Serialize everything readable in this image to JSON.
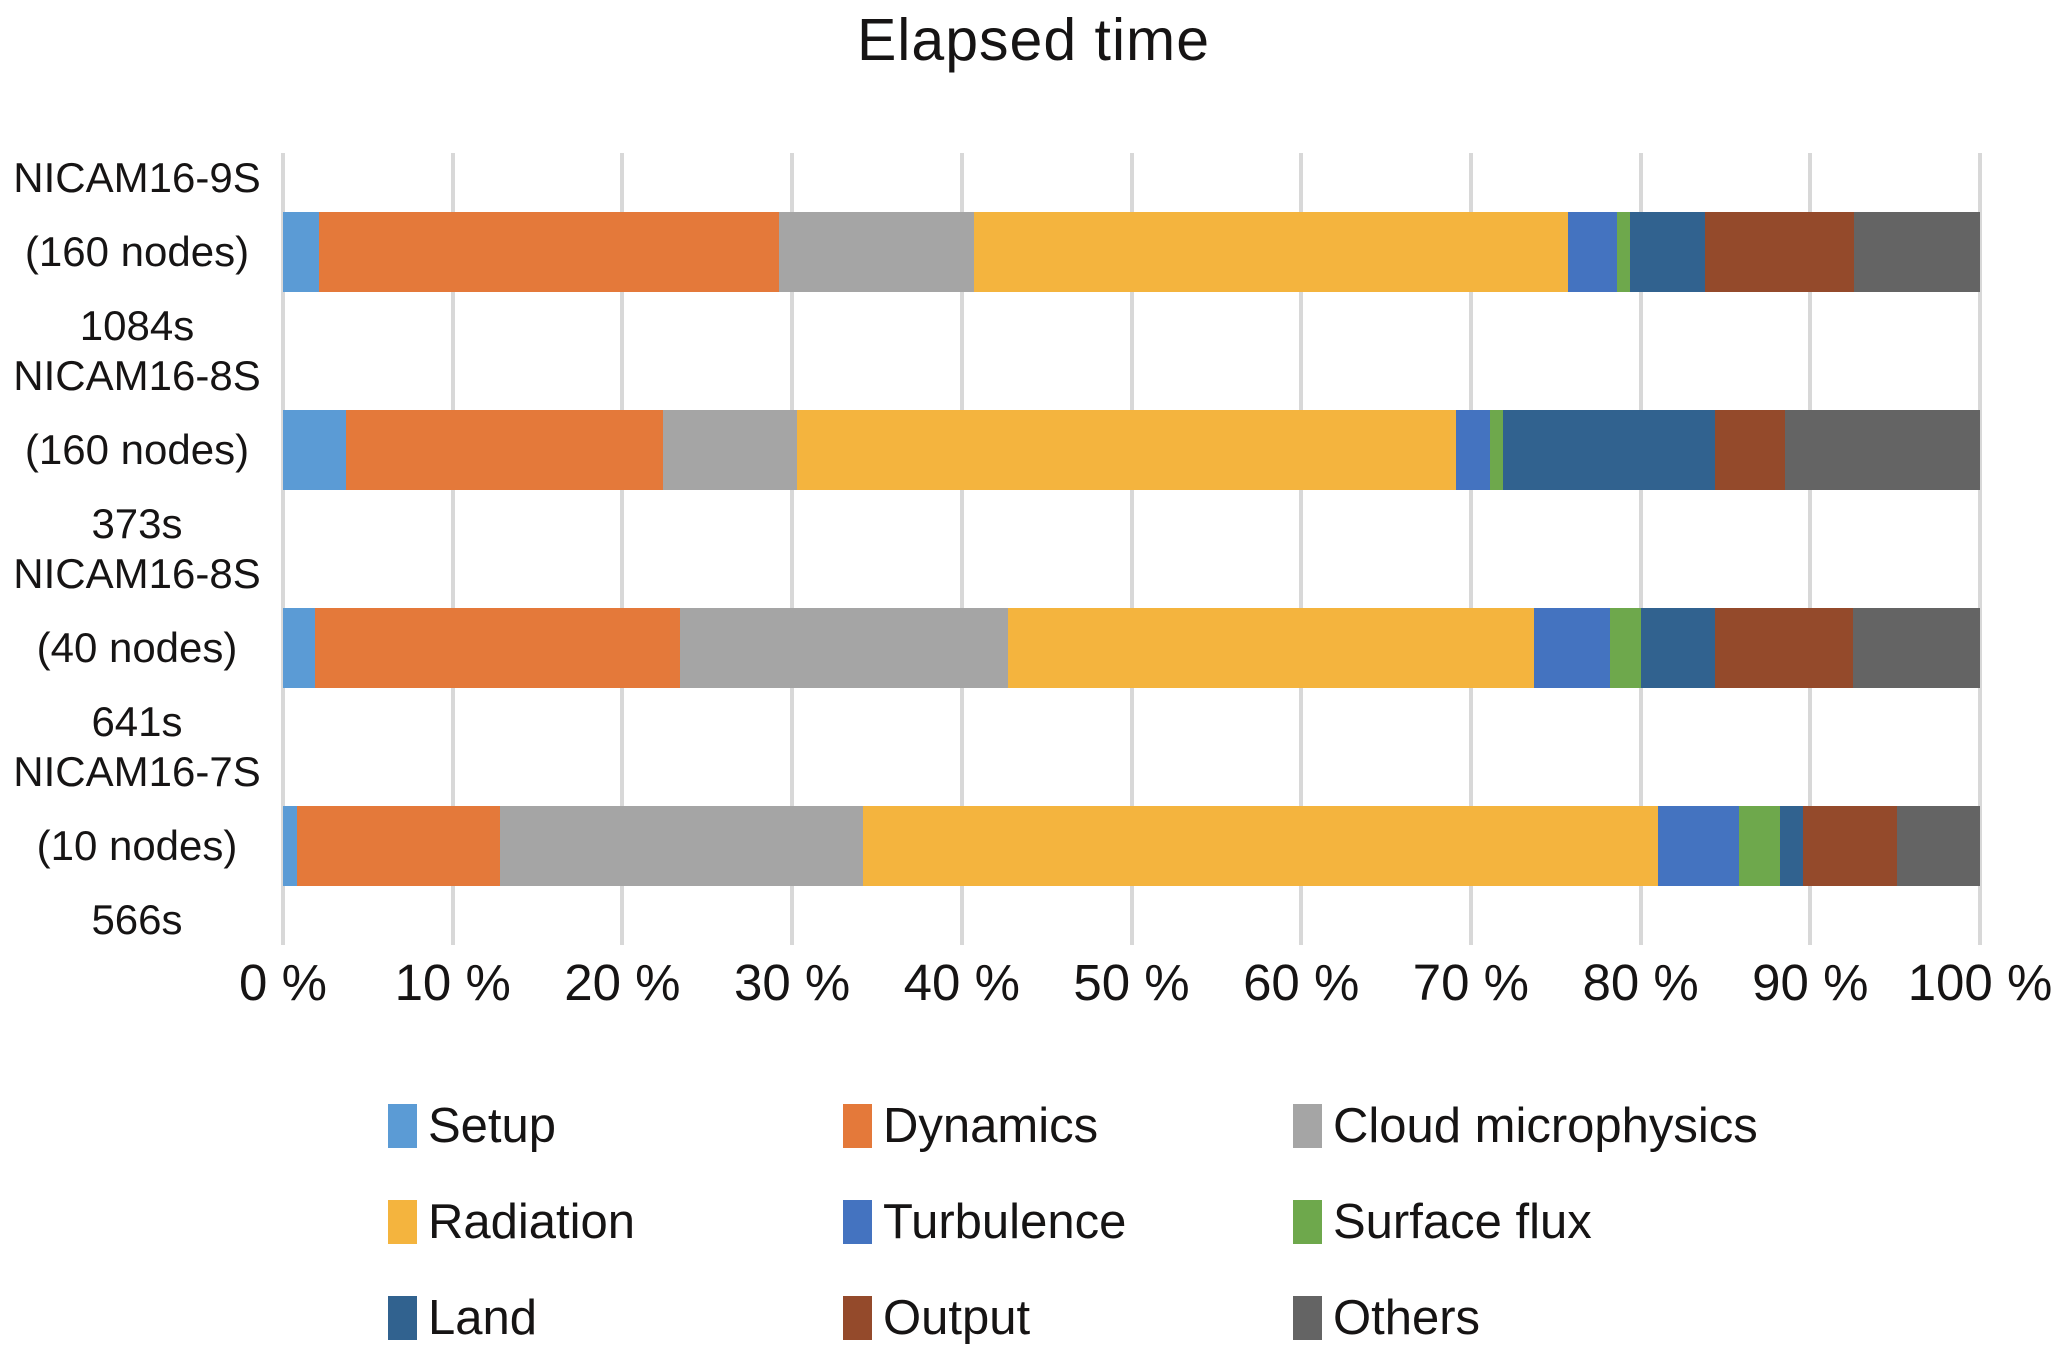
{
  "title": "Elapsed time",
  "chart_data": {
    "type": "bar",
    "orientation": "horizontal",
    "stacked": true,
    "title": "Elapsed time",
    "xlabel": "",
    "ylabel": "",
    "xlim": [
      0,
      100
    ],
    "grid": true,
    "legend_position": "bottom",
    "x_ticks": [
      "0 %",
      "10 %",
      "20 %",
      "30 %",
      "40 %",
      "50 %",
      "60 %",
      "70 %",
      "80 %",
      "90 %",
      "100 %"
    ],
    "categories": [
      {
        "lines": [
          "NICAM16-9S",
          "(160 nodes)",
          "1084s"
        ]
      },
      {
        "lines": [
          "NICAM16-8S",
          "(160 nodes)",
          "373s"
        ]
      },
      {
        "lines": [
          "NICAM16-8S",
          "(40 nodes)",
          "641s"
        ]
      },
      {
        "lines": [
          "NICAM16-7S",
          "(10 nodes)",
          "566s"
        ]
      }
    ],
    "series": [
      {
        "name": "Setup",
        "color": "#5B9BD5",
        "values": [
          2.1,
          3.7,
          1.9,
          0.8
        ]
      },
      {
        "name": "Dynamics",
        "color": "#E4793A",
        "values": [
          27.1,
          18.7,
          21.5,
          12.0
        ]
      },
      {
        "name": "Cloud microphysics",
        "color": "#A5A5A5",
        "values": [
          11.5,
          7.9,
          19.3,
          21.4
        ]
      },
      {
        "name": "Radiation",
        "color": "#F4B43E",
        "values": [
          35.0,
          38.8,
          31.0,
          46.8
        ]
      },
      {
        "name": "Turbulence",
        "color": "#4473C0",
        "values": [
          2.9,
          2.0,
          4.5,
          4.8
        ]
      },
      {
        "name": "Surface flux",
        "color": "#6EA84C",
        "values": [
          0.8,
          0.8,
          1.8,
          2.4
        ]
      },
      {
        "name": "Land",
        "color": "#31628F",
        "values": [
          4.4,
          12.5,
          4.4,
          1.4
        ]
      },
      {
        "name": "Output",
        "color": "#944A2B",
        "values": [
          8.8,
          4.1,
          8.1,
          5.5
        ]
      },
      {
        "name": "Others",
        "color": "#646464",
        "values": [
          7.4,
          11.5,
          7.5,
          4.9
        ]
      }
    ],
    "colors": {
      "gridline": "#d8d8d8",
      "text": "#161414",
      "background": "#ffffff"
    }
  }
}
